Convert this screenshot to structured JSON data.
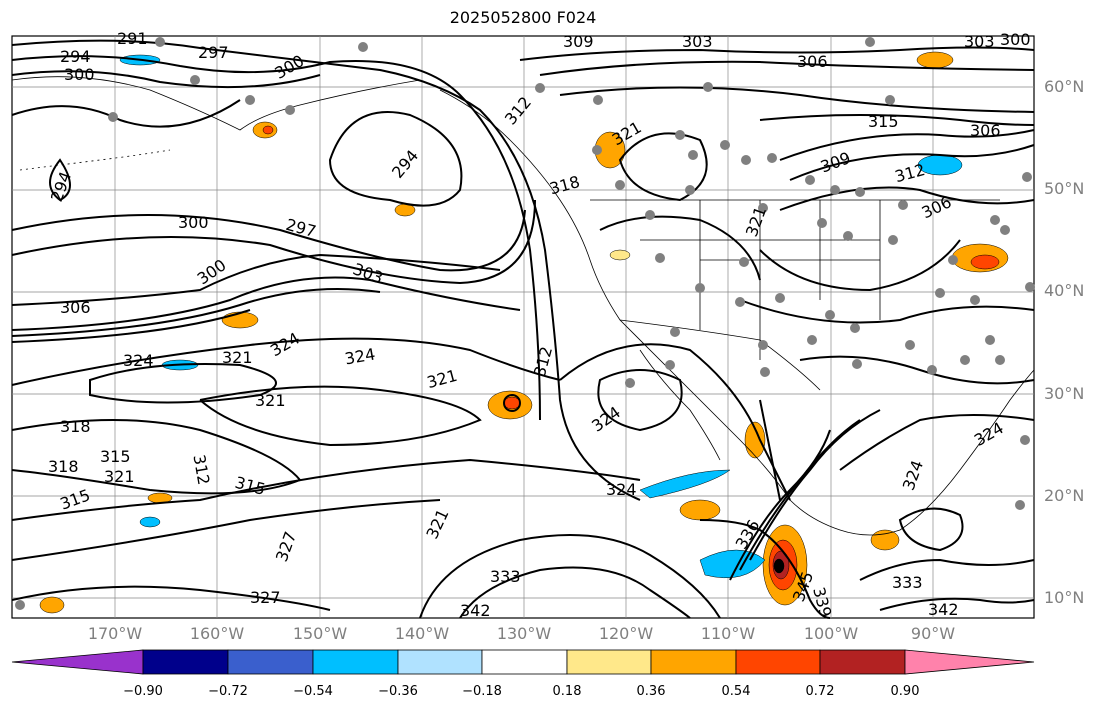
{
  "title": "2025052800 F024",
  "map": {
    "lat_labels": [
      "60°N",
      "50°N",
      "40°N",
      "30°N",
      "20°N",
      "10°N"
    ],
    "lon_labels": [
      "170°W",
      "160°W",
      "150°W",
      "140°W",
      "130°W",
      "120°W",
      "110°W",
      "100°W",
      "90°W"
    ],
    "contour_labels": [
      "291",
      "294",
      "297",
      "300",
      "303",
      "306",
      "309",
      "312",
      "315",
      "318",
      "321",
      "324",
      "327",
      "333",
      "336",
      "339",
      "342",
      "345"
    ],
    "contour_color": "#000000",
    "station_dot_color": "#808080"
  },
  "colorbar": {
    "labels": [
      "−0.90",
      "−0.72",
      "−0.54",
      "−0.36",
      "−0.18",
      "0.18",
      "0.36",
      "0.54",
      "0.72",
      "0.90"
    ],
    "colors": [
      "#9932cc",
      "#00008b",
      "#3a5fcd",
      "#00bfff",
      "#b0e2ff",
      "#ffffff",
      "#ffe88a",
      "#ffa500",
      "#ff4500",
      "#b22222",
      "#ff82ab"
    ]
  }
}
